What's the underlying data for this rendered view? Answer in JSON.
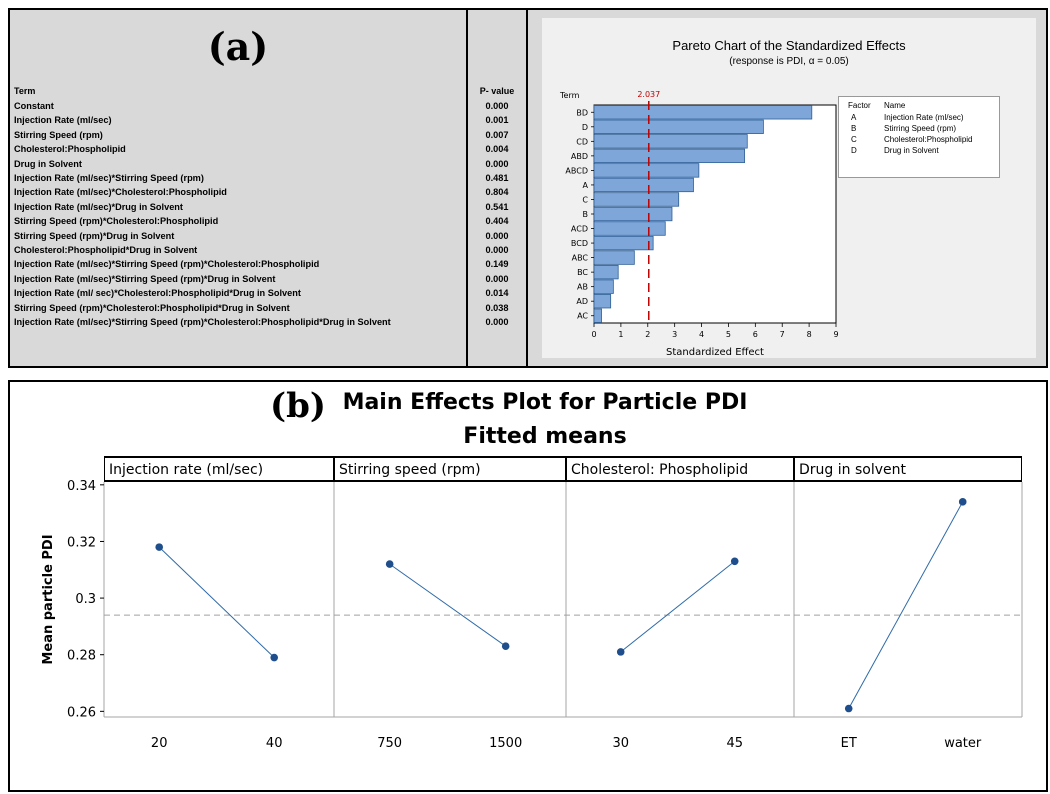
{
  "panel_a": {
    "label": "(a)",
    "table": {
      "col_term": "Term",
      "col_pvalue": "P- value",
      "rows": [
        {
          "term": "Constant",
          "p": "0.000"
        },
        {
          "term": "Injection Rate (ml/sec)",
          "p": "0.001"
        },
        {
          "term": "Stirring Speed (rpm)",
          "p": "0.007"
        },
        {
          "term": "Cholesterol:Phospholipid",
          "p": "0.004"
        },
        {
          "term": "Drug in Solvent",
          "p": "0.000"
        },
        {
          "term": "Injection Rate (ml/sec)*Stirring Speed (rpm)",
          "p": "0.481"
        },
        {
          "term": "Injection Rate (ml/sec)*Cholesterol:Phospholipid",
          "p": "0.804"
        },
        {
          "term": "Injection Rate (ml/sec)*Drug in Solvent",
          "p": "0.541"
        },
        {
          "term": "Stirring Speed (rpm)*Cholesterol:Phospholipid",
          "p": "0.404"
        },
        {
          "term": "Stirring Speed (rpm)*Drug in Solvent",
          "p": "0.000"
        },
        {
          "term": "Cholesterol:Phospholipid*Drug in Solvent",
          "p": "0.000"
        },
        {
          "term": "Injection Rate (ml/sec)*Stirring Speed (rpm)*Cholesterol:Phospholipid",
          "p": "0.149"
        },
        {
          "term": "Injection Rate (ml/sec)*Stirring Speed (rpm)*Drug in Solvent",
          "p": "0.000"
        },
        {
          "term": "Injection Rate (ml/ sec)*Cholesterol:Phospholipid*Drug in Solvent",
          "p": "0.014"
        },
        {
          "term": "Stirring Speed (rpm)*Cholesterol:Phospholipid*Drug in Solvent",
          "p": "0.038"
        },
        {
          "term": "Injection Rate (ml/sec)*Stirring Speed (rpm)*Cholesterol:Phospholipid*Drug in Solvent",
          "p": "0.000"
        }
      ]
    },
    "legend": {
      "header_factor": "Factor",
      "header_name": "Name",
      "items": [
        {
          "factor": "A",
          "name": "Injection Rate   (ml/sec)"
        },
        {
          "factor": "B",
          "name": "Stirring Speed (rpm)"
        },
        {
          "factor": "C",
          "name": "Cholesterol:Phospholipid"
        },
        {
          "factor": "D",
          "name": "Drug in Solvent"
        }
      ]
    }
  },
  "panel_b": {
    "label": "(b)",
    "title": "Main Effects Plot for Particle PDI",
    "subtitle": "Fitted means",
    "ylabel": "Mean particle PDI",
    "panels": [
      "Injection rate (ml/sec)",
      "Stirring speed (rpm)",
      "Cholesterol: Phospholipid",
      "Drug in solvent"
    ]
  },
  "colors": {
    "bar_fill": "#7ea6d8",
    "bar_stroke": "#2f5f95",
    "ref_line": "#c00000",
    "line": "#2e6aa8",
    "marker": "#1f4e8c",
    "mean_line": "#a0a0a0"
  },
  "chart_data": [
    {
      "type": "bar",
      "orientation": "horizontal",
      "title": "Pareto Chart of the Standardized Effects",
      "subtitle": "(response is PDI, α = 0.05)",
      "ylabel": "Term",
      "xlabel": "Standardized Effect",
      "categories": [
        "BD",
        "D",
        "CD",
        "ABD",
        "ABCD",
        "A",
        "C",
        "B",
        "ACD",
        "BCD",
        "ABC",
        "BC",
        "AB",
        "AD",
        "AC"
      ],
      "values": [
        8.1,
        6.3,
        5.7,
        5.6,
        3.9,
        3.7,
        3.15,
        2.9,
        2.65,
        2.2,
        1.5,
        0.9,
        0.72,
        0.62,
        0.28
      ],
      "reference_line": {
        "value": 2.037,
        "label": "2.037"
      },
      "xlim": [
        0,
        9
      ],
      "xticks": [
        0,
        1,
        2,
        3,
        4,
        5,
        6,
        7,
        8,
        9
      ],
      "grid": false,
      "legend_position": "right"
    },
    {
      "type": "line",
      "title": "Main Effects Plot for Particle PDI",
      "subtitle": "Fitted means",
      "ylabel": "Mean particle PDI",
      "ylim": [
        0.258,
        0.341
      ],
      "yticks": [
        0.26,
        0.28,
        0.3,
        0.32,
        0.34
      ],
      "ytick_labels": [
        "0.26",
        "0.28",
        "0.3",
        "0.32",
        "0.34"
      ],
      "overall_mean": 0.294,
      "series": [
        {
          "name": "Injection rate (ml/sec)",
          "x": [
            "20",
            "40"
          ],
          "values": [
            0.318,
            0.279
          ]
        },
        {
          "name": "Stirring speed (rpm)",
          "x": [
            "750",
            "1500"
          ],
          "values": [
            0.312,
            0.283
          ]
        },
        {
          "name": "Cholesterol: Phospholipid",
          "x": [
            "30",
            "45"
          ],
          "values": [
            0.281,
            0.313
          ]
        },
        {
          "name": "Drug in solvent",
          "x": [
            "ET",
            "water"
          ],
          "values": [
            0.261,
            0.334
          ]
        }
      ]
    }
  ]
}
